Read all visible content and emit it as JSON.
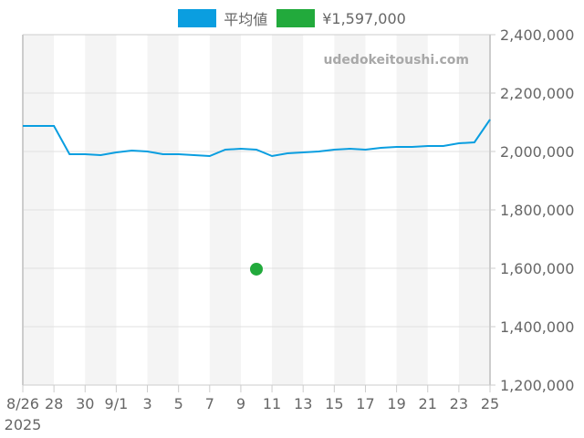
{
  "legend": {
    "items": [
      {
        "label": "平均値",
        "color": "#0a9ee0"
      },
      {
        "label": "¥1,597,000",
        "color": "#22aa3c"
      }
    ]
  },
  "watermark": "udedokeitoushi.com",
  "chart_data": {
    "type": "line",
    "title": "",
    "xlabel": "",
    "ylabel": "",
    "ylim": [
      1200000,
      2400000
    ],
    "yticks": [
      1200000,
      1400000,
      1600000,
      1800000,
      2000000,
      2200000,
      2400000
    ],
    "ytick_labels": [
      "1,200,000",
      "1,400,000",
      "1,600,000",
      "1,800,000",
      "2,000,000",
      "2,200,000",
      "2,400,000"
    ],
    "xtick_labels": [
      "8/26",
      "28",
      "30",
      "9/1",
      "3",
      "5",
      "7",
      "9",
      "11",
      "13",
      "15",
      "17",
      "19",
      "21",
      "23",
      "25"
    ],
    "xtick_year": "2025",
    "x": [
      "8/26",
      "8/27",
      "8/28",
      "8/29",
      "8/30",
      "8/31",
      "9/1",
      "9/2",
      "9/3",
      "9/4",
      "9/5",
      "9/6",
      "9/7",
      "9/8",
      "9/9",
      "9/10",
      "9/11",
      "9/12",
      "9/13",
      "9/14",
      "9/15",
      "9/16",
      "9/17",
      "9/18",
      "9/19",
      "9/20",
      "9/21",
      "9/22",
      "9/23",
      "9/24",
      "9/25"
    ],
    "series": [
      {
        "name": "平均値",
        "type": "line",
        "color": "#0a9ee0",
        "values": [
          2087500,
          2087500,
          2087500,
          1990600,
          1990600,
          1987500,
          1996900,
          2003100,
          2000000,
          1990600,
          1990600,
          1987500,
          1984400,
          2006300,
          2009400,
          2006300,
          1984400,
          1993800,
          1996900,
          2000000,
          2006300,
          2009400,
          2006300,
          2012500,
          2015600,
          2015600,
          2018800,
          2018800,
          2028100,
          2031300,
          2109400
        ]
      },
      {
        "name": "¥1,597,000",
        "type": "scatter",
        "color": "#22aa3c",
        "points": [
          {
            "x": "9/10",
            "y": 1597000
          }
        ]
      }
    ],
    "grid": true,
    "legend_position": "top"
  }
}
